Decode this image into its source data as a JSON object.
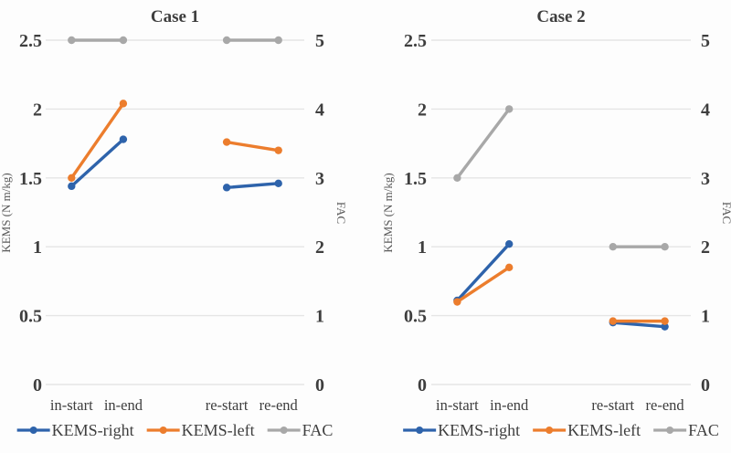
{
  "figure": {
    "background": "#fdfdfd",
    "text_color": "#3e3e3e",
    "gridline_color": "#e5e5e5"
  },
  "colors": {
    "kems_right": "#2e63ab",
    "kems_left": "#ec7d2d",
    "fac": "#a8a8a8"
  },
  "legend": {
    "entries": [
      {
        "label": "KEMS-right",
        "color_key": "kems_right"
      },
      {
        "label": "KEMS-left",
        "color_key": "kems_left"
      },
      {
        "label": "FAC",
        "color_key": "fac"
      }
    ],
    "position": "bottom"
  },
  "chart_data": [
    {
      "type": "line",
      "title": "Case 1",
      "categories": [
        "in-start",
        "in-end",
        "re-start",
        "re-end"
      ],
      "category_slots": [
        0,
        1,
        3,
        4
      ],
      "slot_count": 5,
      "grid": true,
      "left_axis": {
        "label": "KEMS (N m/kg)",
        "range": [
          0,
          2.5
        ],
        "ticks": [
          2.5,
          2,
          1.5,
          1,
          0.5,
          0
        ],
        "tick_labels": [
          "2.5",
          "2",
          "1.5",
          "1",
          "0.5",
          "0"
        ]
      },
      "right_axis": {
        "label": "FAC",
        "range": [
          0,
          5
        ],
        "ticks": [
          5,
          4,
          3,
          2,
          1,
          0
        ],
        "tick_labels": [
          "5",
          "4",
          "3",
          "2",
          "1",
          "0"
        ]
      },
      "series": [
        {
          "name": "KEMS-right",
          "axis": "left",
          "color_key": "kems_right",
          "values": [
            1.44,
            1.78,
            1.43,
            1.46
          ]
        },
        {
          "name": "KEMS-left",
          "axis": "left",
          "color_key": "kems_left",
          "values": [
            1.5,
            2.04,
            1.76,
            1.7
          ]
        },
        {
          "name": "FAC",
          "axis": "right",
          "color_key": "fac",
          "values": [
            5,
            5,
            5,
            5
          ]
        }
      ]
    },
    {
      "type": "line",
      "title": "Case 2",
      "categories": [
        "in-start",
        "in-end",
        "re-start",
        "re-end"
      ],
      "category_slots": [
        0,
        1,
        3,
        4
      ],
      "slot_count": 5,
      "grid": true,
      "left_axis": {
        "label": "KEMS (N m/kg)",
        "range": [
          0,
          2.5
        ],
        "ticks": [
          2.5,
          2,
          1.5,
          1,
          0.5,
          0
        ],
        "tick_labels": [
          "2.5",
          "2",
          "1.5",
          "1",
          "0.5",
          "0"
        ]
      },
      "right_axis": {
        "label": "FAC",
        "range": [
          0,
          5
        ],
        "ticks": [
          5,
          4,
          3,
          2,
          1,
          0
        ],
        "tick_labels": [
          "5",
          "4",
          "3",
          "2",
          "1",
          "0"
        ]
      },
      "series": [
        {
          "name": "KEMS-right",
          "axis": "left",
          "color_key": "kems_right",
          "values": [
            0.61,
            1.02,
            0.45,
            0.42
          ]
        },
        {
          "name": "KEMS-left",
          "axis": "left",
          "color_key": "kems_left",
          "values": [
            0.6,
            0.85,
            0.46,
            0.46
          ]
        },
        {
          "name": "FAC",
          "axis": "right",
          "color_key": "fac",
          "values": [
            3,
            4,
            2,
            2
          ]
        }
      ]
    }
  ]
}
